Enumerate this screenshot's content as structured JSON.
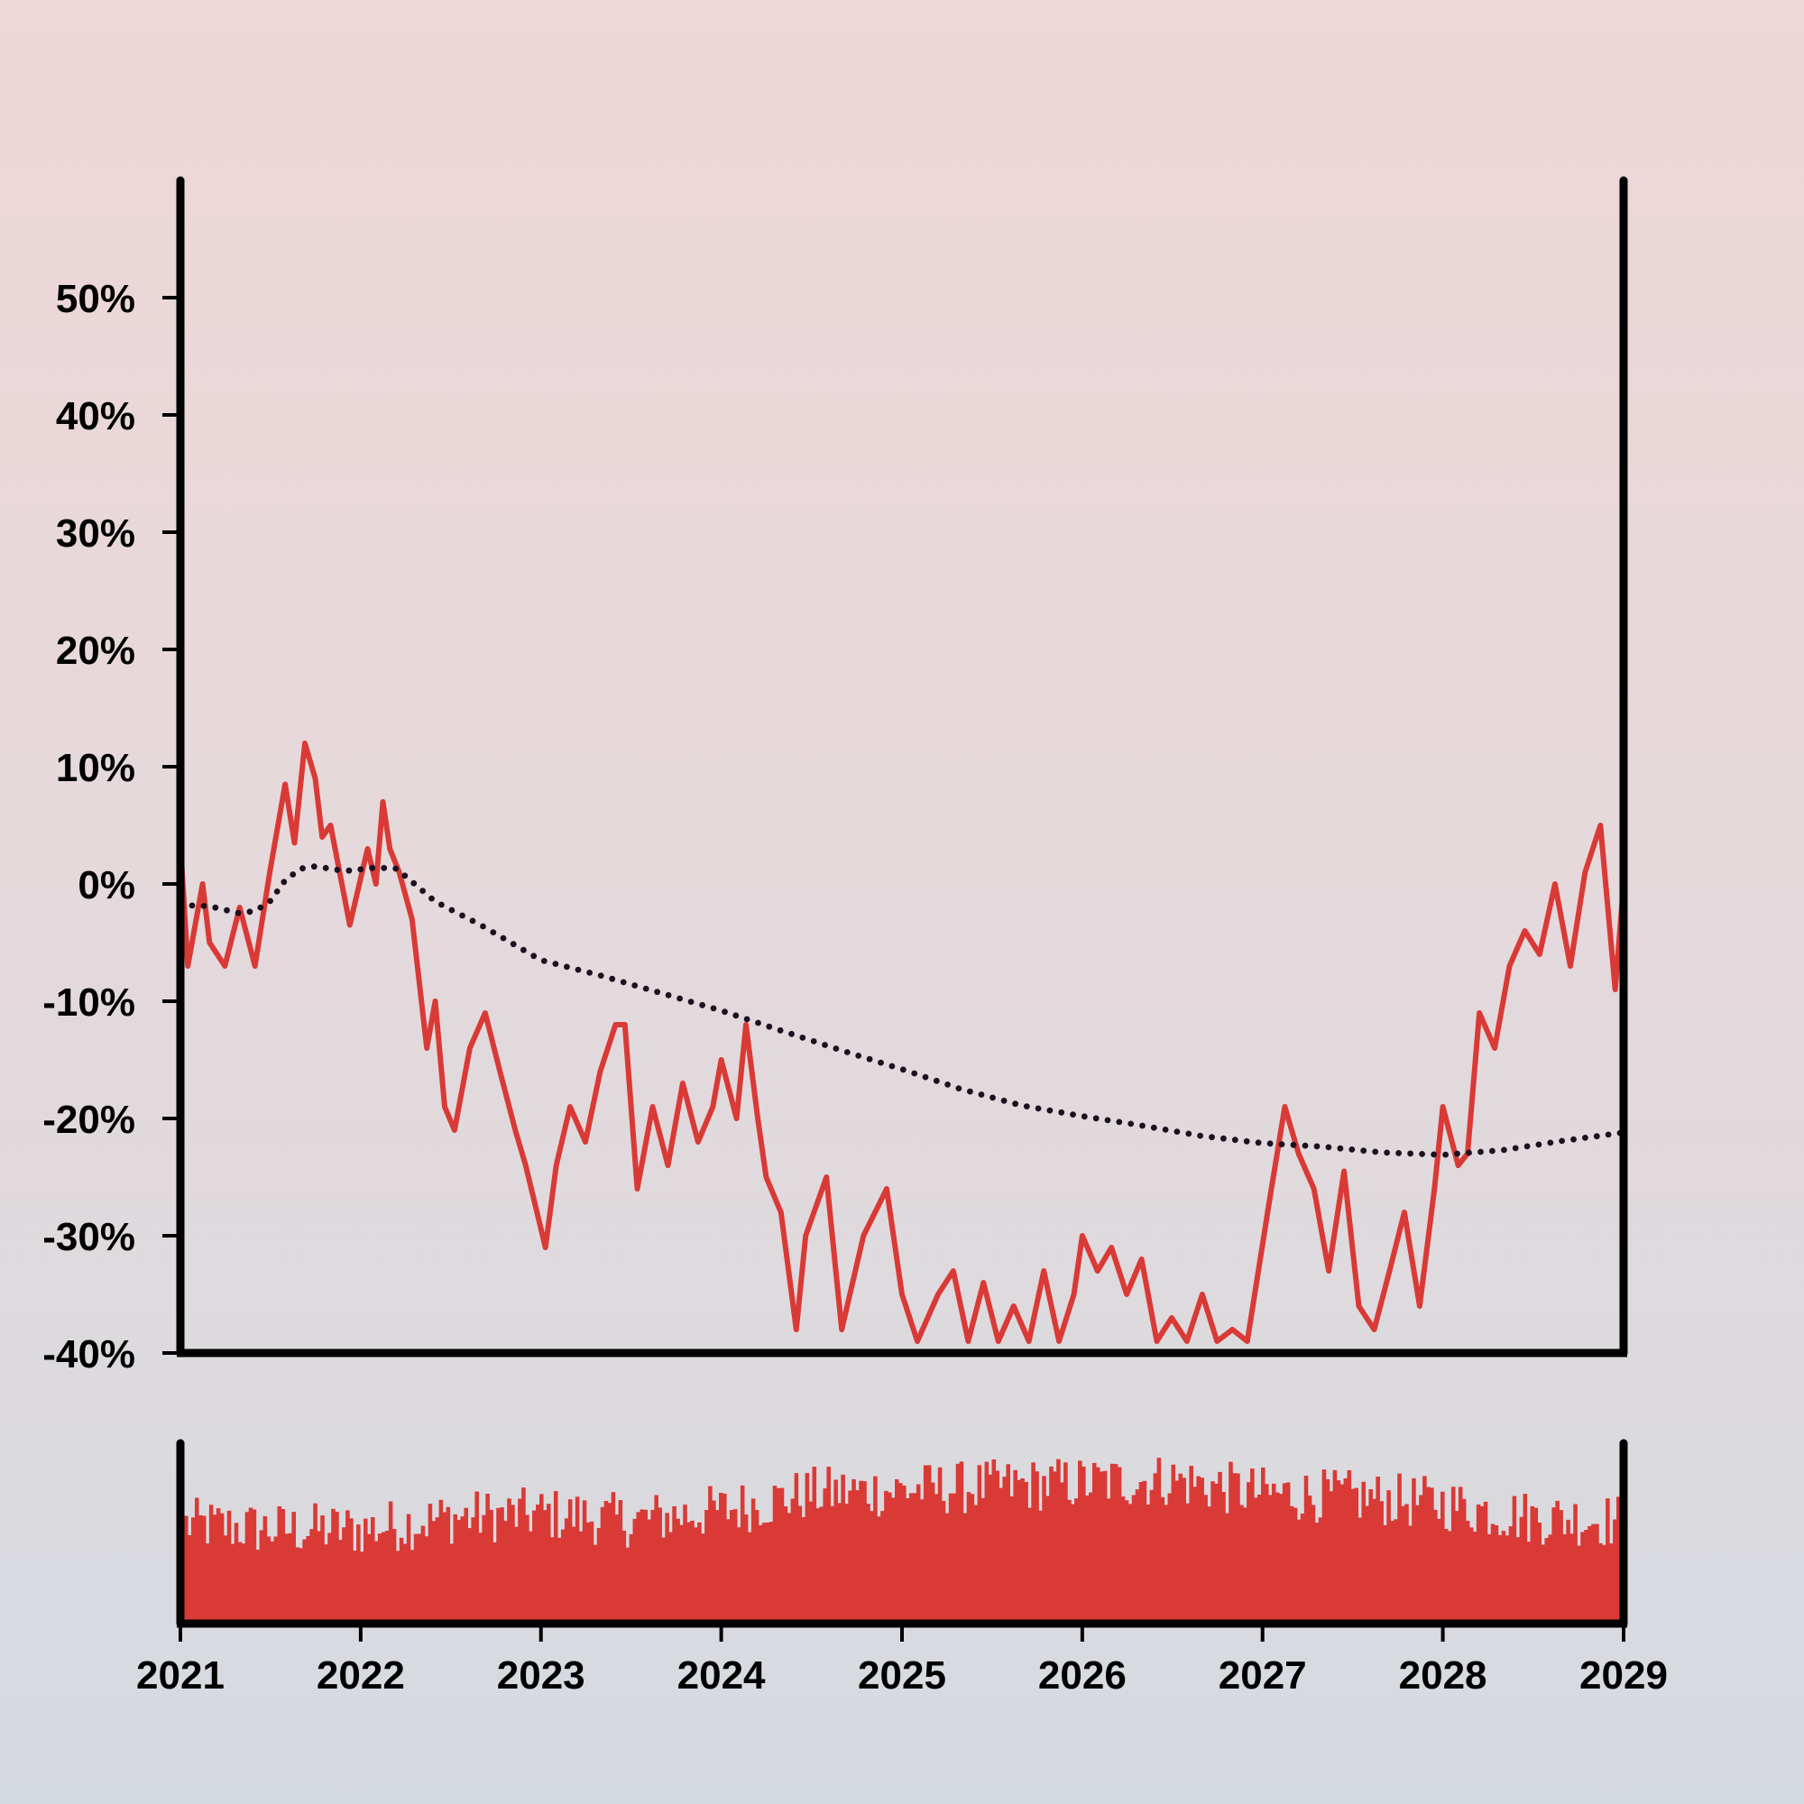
{
  "chart_data": [
    {
      "type": "line",
      "title": "",
      "xlabel": "",
      "ylabel": "",
      "x_range": [
        "2021-01-01",
        "2029-01-01"
      ],
      "ylim": [
        -40,
        60
      ],
      "y_tick_values": [
        -40,
        -30,
        -20,
        -10,
        0,
        10,
        20,
        30,
        40,
        50
      ],
      "y_ticks": [
        "-40%",
        "-30%",
        "-20%",
        "-10%",
        "0%",
        "10%",
        "20%",
        "30%",
        "40%",
        "50%"
      ],
      "x_ticks": [
        "2021",
        "2022",
        "2023",
        "2024",
        "2025",
        "2026",
        "2027",
        "2028",
        "2029"
      ],
      "grid": false,
      "series": [
        {
          "role": "price",
          "style": "solid",
          "color": "#d93a36",
          "points": [
            [
              "2021-01-01",
              3.5
            ],
            [
              "2021-01-16",
              -7
            ],
            [
              "2021-02-15",
              0
            ],
            [
              "2021-03-01",
              -5
            ],
            [
              "2021-04-01",
              -7
            ],
            [
              "2021-05-01",
              -2
            ],
            [
              "2021-06-01",
              -7
            ],
            [
              "2021-07-01",
              1
            ],
            [
              "2021-08-01",
              8.5
            ],
            [
              "2021-08-20",
              3.5
            ],
            [
              "2021-09-10",
              12
            ],
            [
              "2021-10-01",
              9
            ],
            [
              "2021-10-15",
              4
            ],
            [
              "2021-11-01",
              5
            ],
            [
              "2021-12-10",
              -3.5
            ],
            [
              "2022-01-15",
              3
            ],
            [
              "2022-02-01",
              0
            ],
            [
              "2022-02-15",
              7
            ],
            [
              "2022-03-01",
              3
            ],
            [
              "2022-03-20",
              1
            ],
            [
              "2022-04-15",
              -3
            ],
            [
              "2022-05-15",
              -14
            ],
            [
              "2022-06-01",
              -10
            ],
            [
              "2022-06-20",
              -19
            ],
            [
              "2022-07-10",
              -21
            ],
            [
              "2022-08-10",
              -14
            ],
            [
              "2022-09-10",
              -11
            ],
            [
              "2022-10-10",
              -16
            ],
            [
              "2022-11-10",
              -21
            ],
            [
              "2022-12-01",
              -24
            ],
            [
              "2023-01-10",
              -31
            ],
            [
              "2023-02-01",
              -24
            ],
            [
              "2023-03-01",
              -19
            ],
            [
              "2023-04-01",
              -22
            ],
            [
              "2023-05-01",
              -16
            ],
            [
              "2023-06-01",
              -12
            ],
            [
              "2023-06-20",
              -12
            ],
            [
              "2023-07-15",
              -26
            ],
            [
              "2023-08-15",
              -19
            ],
            [
              "2023-09-15",
              -24
            ],
            [
              "2023-10-15",
              -17
            ],
            [
              "2023-11-15",
              -22
            ],
            [
              "2023-12-15",
              -19
            ],
            [
              "2024-01-01",
              -15
            ],
            [
              "2024-02-01",
              -20
            ],
            [
              "2024-02-20",
              -12
            ],
            [
              "2024-03-15",
              -20
            ],
            [
              "2024-04-01",
              -25
            ],
            [
              "2024-05-01",
              -28
            ],
            [
              "2024-06-01",
              -38
            ],
            [
              "2024-06-20",
              -30
            ],
            [
              "2024-08-01",
              -25
            ],
            [
              "2024-09-01",
              -38
            ],
            [
              "2024-10-15",
              -30
            ],
            [
              "2024-12-01",
              -26
            ],
            [
              "2025-01-01",
              -35
            ],
            [
              "2025-02-01",
              -39
            ],
            [
              "2025-03-15",
              -35
            ],
            [
              "2025-04-15",
              -33
            ],
            [
              "2025-05-15",
              -39
            ],
            [
              "2025-06-15",
              -34
            ],
            [
              "2025-07-15",
              -39
            ],
            [
              "2025-08-15",
              -36
            ],
            [
              "2025-09-15",
              -39
            ],
            [
              "2025-10-15",
              -33
            ],
            [
              "2025-11-15",
              -39
            ],
            [
              "2025-12-15",
              -35
            ],
            [
              "2026-01-01",
              -30
            ],
            [
              "2026-02-01",
              -33
            ],
            [
              "2026-03-01",
              -31
            ],
            [
              "2026-04-01",
              -35
            ],
            [
              "2026-05-01",
              -32
            ],
            [
              "2026-06-01",
              -39
            ],
            [
              "2026-07-01",
              -37
            ],
            [
              "2026-08-01",
              -39
            ],
            [
              "2026-09-01",
              -35
            ],
            [
              "2026-10-01",
              -39
            ],
            [
              "2026-11-01",
              -38
            ],
            [
              "2026-12-01",
              -39
            ],
            [
              "2027-01-15",
              -27
            ],
            [
              "2027-02-15",
              -19
            ],
            [
              "2027-03-15",
              -23
            ],
            [
              "2027-04-15",
              -26
            ],
            [
              "2027-05-15",
              -33
            ],
            [
              "2027-06-15",
              -24.5
            ],
            [
              "2027-07-15",
              -36
            ],
            [
              "2027-08-15",
              -38
            ],
            [
              "2027-09-15",
              -33
            ],
            [
              "2027-10-15",
              -28
            ],
            [
              "2027-11-15",
              -36
            ],
            [
              "2027-12-15",
              -26
            ],
            [
              "2028-01-01",
              -19
            ],
            [
              "2028-02-01",
              -24
            ],
            [
              "2028-02-20",
              -23
            ],
            [
              "2028-03-15",
              -11
            ],
            [
              "2028-04-15",
              -14
            ],
            [
              "2028-05-15",
              -7
            ],
            [
              "2028-06-15",
              -4
            ],
            [
              "2028-07-15",
              -6
            ],
            [
              "2028-08-15",
              0
            ],
            [
              "2028-09-15",
              -7
            ],
            [
              "2028-10-15",
              1
            ],
            [
              "2028-11-15",
              5
            ],
            [
              "2028-12-15",
              -9
            ],
            [
              "2029-01-01",
              0
            ]
          ]
        },
        {
          "role": "moving-average",
          "style": "dotted",
          "color": "#1e1020",
          "points": [
            [
              "2021-01-01",
              -1.8
            ],
            [
              "2021-03-01",
              -1.9
            ],
            [
              "2021-05-01",
              -2.5
            ],
            [
              "2021-06-01",
              -2.3
            ],
            [
              "2021-07-01",
              -1.5
            ],
            [
              "2021-08-01",
              0.3
            ],
            [
              "2021-09-01",
              1.3
            ],
            [
              "2021-10-01",
              1.5
            ],
            [
              "2021-12-01",
              1.1
            ],
            [
              "2022-02-01",
              1.4
            ],
            [
              "2022-03-15",
              1.3
            ],
            [
              "2022-06-01",
              -1.5
            ],
            [
              "2022-09-01",
              -3.5
            ],
            [
              "2023-01-01",
              -6.5
            ],
            [
              "2023-05-01",
              -7.8
            ],
            [
              "2023-09-01",
              -9.3
            ],
            [
              "2024-01-01",
              -10.8
            ],
            [
              "2024-05-01",
              -12.5
            ],
            [
              "2024-09-01",
              -14.2
            ],
            [
              "2025-01-01",
              -15.8
            ],
            [
              "2025-05-01",
              -17.5
            ],
            [
              "2025-09-01",
              -18.9
            ],
            [
              "2026-01-01",
              -19.8
            ],
            [
              "2026-05-01",
              -20.6
            ],
            [
              "2026-09-01",
              -21.5
            ],
            [
              "2027-01-01",
              -22.1
            ],
            [
              "2027-05-01",
              -22.4
            ],
            [
              "2027-09-01",
              -22.9
            ],
            [
              "2028-01-01",
              -23.1
            ],
            [
              "2028-05-01",
              -22.7
            ],
            [
              "2028-09-01",
              -21.9
            ],
            [
              "2029-01-01",
              -21.2
            ]
          ]
        }
      ]
    },
    {
      "type": "bar",
      "role": "volume",
      "title": "",
      "color": "#d93a36",
      "x_range": [
        "2021-01-01",
        "2029-01-01"
      ],
      "x_ticks": [
        "2021",
        "2022",
        "2023",
        "2024",
        "2025",
        "2026",
        "2027",
        "2028",
        "2029"
      ],
      "envelope": [
        [
          "2021-01-01",
          0.58
        ],
        [
          "2021-07-01",
          0.55
        ],
        [
          "2022-01-01",
          0.55
        ],
        [
          "2022-07-01",
          0.62
        ],
        [
          "2023-01-01",
          0.64
        ],
        [
          "2023-07-01",
          0.6
        ],
        [
          "2024-01-01",
          0.66
        ],
        [
          "2024-07-01",
          0.76
        ],
        [
          "2025-01-01",
          0.78
        ],
        [
          "2025-07-01",
          0.8
        ],
        [
          "2026-01-01",
          0.82
        ],
        [
          "2026-07-01",
          0.84
        ],
        [
          "2027-01-01",
          0.76
        ],
        [
          "2027-07-01",
          0.74
        ],
        [
          "2028-01-01",
          0.7
        ],
        [
          "2028-07-01",
          0.62
        ],
        [
          "2029-01-01",
          0.6
        ]
      ]
    }
  ]
}
